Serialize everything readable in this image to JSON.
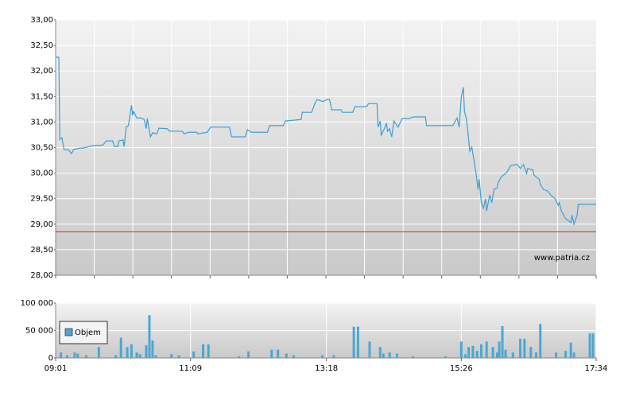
{
  "chart_data": [
    {
      "type": "line",
      "x": [
        541,
        544,
        545,
        547,
        549,
        553,
        556,
        558,
        564,
        567,
        571,
        577,
        586,
        589,
        595,
        597,
        600,
        601,
        605,
        606,
        608,
        610,
        611,
        613,
        614,
        615,
        618,
        622,
        625,
        627,
        628,
        630,
        631,
        633,
        637,
        639,
        647,
        649,
        661,
        663,
        667,
        675,
        676,
        685,
        688,
        706,
        708,
        721,
        723,
        727,
        742,
        744,
        757,
        759,
        774,
        775,
        784,
        787,
        789,
        795,
        798,
        801,
        803,
        812,
        813,
        823,
        825,
        836,
        838,
        846,
        847,
        849,
        850,
        853,
        855,
        856,
        858,
        860,
        862,
        866,
        870,
        877,
        880,
        892,
        893,
        918,
        922,
        924,
        926,
        928,
        929,
        931,
        933,
        934,
        936,
        939,
        940,
        942,
        943,
        945,
        947,
        949,
        950,
        953,
        955,
        957,
        960,
        961,
        964,
        968,
        970,
        973,
        979,
        982,
        985,
        988,
        989,
        994,
        995,
        1000,
        1001,
        1004,
        1008,
        1011,
        1015,
        1018,
        1019,
        1021,
        1025,
        1030,
        1031,
        1033,
        1036,
        1037,
        1054
      ],
      "values": [
        32.27,
        32.27,
        30.66,
        30.69,
        30.46,
        30.46,
        30.38,
        30.46,
        30.49,
        30.49,
        30.51,
        30.54,
        30.55,
        30.63,
        30.63,
        30.52,
        30.52,
        30.63,
        30.65,
        30.52,
        30.9,
        30.93,
        31.05,
        31.33,
        31.13,
        31.21,
        31.08,
        31.08,
        31.05,
        30.87,
        31.07,
        30.82,
        30.71,
        30.79,
        30.77,
        30.88,
        30.87,
        30.82,
        30.82,
        30.77,
        30.8,
        30.8,
        30.77,
        30.8,
        30.9,
        30.9,
        30.71,
        30.71,
        30.85,
        30.8,
        30.8,
        30.93,
        30.93,
        31.02,
        31.05,
        31.19,
        31.19,
        31.36,
        31.44,
        31.4,
        31.44,
        31.44,
        31.24,
        31.24,
        31.19,
        31.19,
        31.3,
        31.3,
        31.36,
        31.36,
        30.9,
        31.02,
        30.74,
        30.87,
        30.98,
        30.82,
        30.87,
        30.71,
        31.02,
        30.9,
        31.07,
        31.07,
        31.1,
        31.1,
        30.93,
        30.93,
        31.08,
        30.9,
        31.49,
        31.68,
        31.21,
        31.05,
        30.66,
        30.43,
        30.51,
        30.12,
        29.99,
        29.68,
        29.88,
        29.42,
        29.31,
        29.5,
        29.26,
        29.57,
        29.42,
        29.68,
        29.71,
        29.81,
        29.93,
        29.99,
        30.04,
        30.15,
        30.17,
        30.09,
        30.17,
        29.99,
        30.09,
        30.06,
        29.96,
        29.88,
        29.78,
        29.68,
        29.65,
        29.57,
        29.5,
        29.37,
        29.42,
        29.26,
        29.11,
        29.03,
        29.18,
        29.0,
        29.18,
        29.39,
        29.39
      ],
      "color": "#3e9fd1",
      "xlim": [
        541,
        1054
      ],
      "ylim": [
        28,
        33
      ],
      "yticks": [
        {
          "value": 28,
          "label": "28,00"
        },
        {
          "value": 28.5,
          "label": "28,50"
        },
        {
          "value": 29,
          "label": "29,00"
        },
        {
          "value": 29.5,
          "label": "29,50"
        },
        {
          "value": 30,
          "label": "30,00"
        },
        {
          "value": 30.5,
          "label": "30,50"
        },
        {
          "value": 31,
          "label": "31,00"
        },
        {
          "value": 31.5,
          "label": "31,50"
        },
        {
          "value": 32,
          "label": "32,00"
        },
        {
          "value": 32.5,
          "label": "32,50"
        },
        {
          "value": 33,
          "label": "33,00"
        }
      ],
      "hline": {
        "value": 28.85,
        "color": "#d03020"
      },
      "annotation": "www.patria.cz",
      "grid": true
    },
    {
      "type": "bar",
      "x": [
        546,
        552,
        559,
        562,
        570,
        582,
        598,
        603,
        609,
        613,
        618,
        621,
        627,
        630,
        633,
        636,
        651,
        658,
        672,
        681,
        686,
        715,
        724,
        746,
        752,
        760,
        767,
        794,
        805,
        824,
        828,
        839,
        849,
        852,
        858,
        865,
        880,
        911,
        926,
        930,
        933,
        937,
        941,
        945,
        950,
        956,
        960,
        962,
        965,
        968,
        975,
        982,
        986,
        992,
        997,
        1001,
        1016,
        1025,
        1030,
        1033,
        1048,
        1051
      ],
      "series": [
        {
          "name": "Objem",
          "color": "#4aa7d3",
          "values": [
            10000,
            5000,
            10000,
            8000,
            5000,
            20000,
            5000,
            37000,
            20000,
            25000,
            10000,
            7000,
            23000,
            78000,
            32000,
            5000,
            7000,
            5000,
            12000,
            25000,
            25000,
            3000,
            12000,
            15000,
            15000,
            8000,
            5000,
            5000,
            5000,
            57000,
            57000,
            30000,
            20000,
            8000,
            10000,
            8000,
            3000,
            3000,
            30000,
            7000,
            20000,
            22000,
            13000,
            25000,
            30000,
            20000,
            10000,
            30000,
            58000,
            15000,
            10000,
            35000,
            35000,
            20000,
            10000,
            62000,
            10000,
            13000,
            28000,
            10000,
            45000,
            45000
          ]
        }
      ],
      "xlim": [
        541,
        1054
      ],
      "xticks": [
        {
          "value": 541,
          "label": "09:01"
        },
        {
          "value": 669,
          "label": "11:09"
        },
        {
          "value": 798,
          "label": "13:18"
        },
        {
          "value": 926,
          "label": "15:26"
        },
        {
          "value": 1054,
          "label": "17:34"
        }
      ],
      "ylim": [
        0,
        100000
      ],
      "yticks": [
        0,
        {
          "value": 50000,
          "label": "50 000"
        },
        {
          "value": 100000,
          "label": "100 000"
        }
      ],
      "legend": "lower-left",
      "grid": true
    }
  ]
}
